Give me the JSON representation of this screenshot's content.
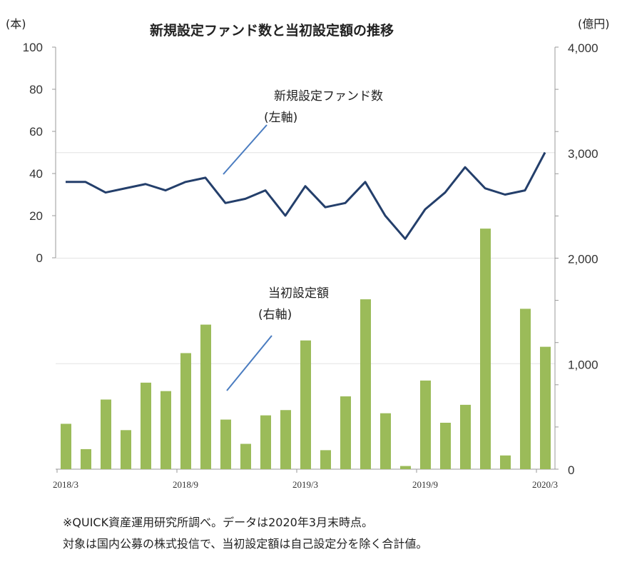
{
  "chart_data": {
    "type": "bar+line",
    "title": "新規設定ファンド数と当初設定額の推移",
    "left_unit": "(本)",
    "right_unit": "(億円)",
    "left_ylim": [
      0,
      100
    ],
    "right_ylim": [
      0,
      4000
    ],
    "left_ticks": [
      "100",
      "80",
      "60",
      "40",
      "20",
      "0"
    ],
    "right_ticks": [
      "4,000",
      "3,000",
      "2,000",
      "1,000",
      "0"
    ],
    "x_tick_labels": [
      "2018/3",
      "2018/9",
      "2019/3",
      "2019/9",
      "2020/3"
    ],
    "months": [
      "2018/3",
      "2018/4",
      "2018/5",
      "2018/6",
      "2018/7",
      "2018/8",
      "2018/9",
      "2018/10",
      "2018/11",
      "2018/12",
      "2019/1",
      "2019/2",
      "2019/3",
      "2019/4",
      "2019/5",
      "2019/6",
      "2019/7",
      "2019/8",
      "2019/9",
      "2019/10",
      "2019/11",
      "2019/12",
      "2020/1",
      "2020/2",
      "2020/3"
    ],
    "series": [
      {
        "name": "新規設定ファンド数",
        "axis": "left",
        "type": "line",
        "color": "#243f6b",
        "values": [
          36,
          36,
          31,
          33,
          35,
          32,
          36,
          38,
          26,
          28,
          32,
          20,
          34,
          24,
          26,
          36,
          20,
          9,
          23,
          31,
          43,
          33,
          30,
          32,
          50
        ]
      },
      {
        "name": "当初設定額",
        "axis": "right",
        "type": "bar",
        "color": "#9bbb59",
        "values": [
          430,
          190,
          660,
          370,
          820,
          740,
          1100,
          1370,
          470,
          240,
          510,
          560,
          1220,
          180,
          690,
          1610,
          530,
          30,
          840,
          440,
          610,
          2280,
          130,
          1520,
          1160
        ]
      }
    ],
    "annotations": [
      {
        "line1": "新規設定ファンド数",
        "line2": "(左軸)"
      },
      {
        "line1": "当初設定額",
        "line2": "(右軸)"
      }
    ],
    "grid": "horizontal"
  },
  "notes": [
    "※QUICK資産運用研究所調べ。データは2020年3月末時点。",
    "対象は国内公募の株式投信で、当初設定額は自己設定分を除く合計値。"
  ]
}
